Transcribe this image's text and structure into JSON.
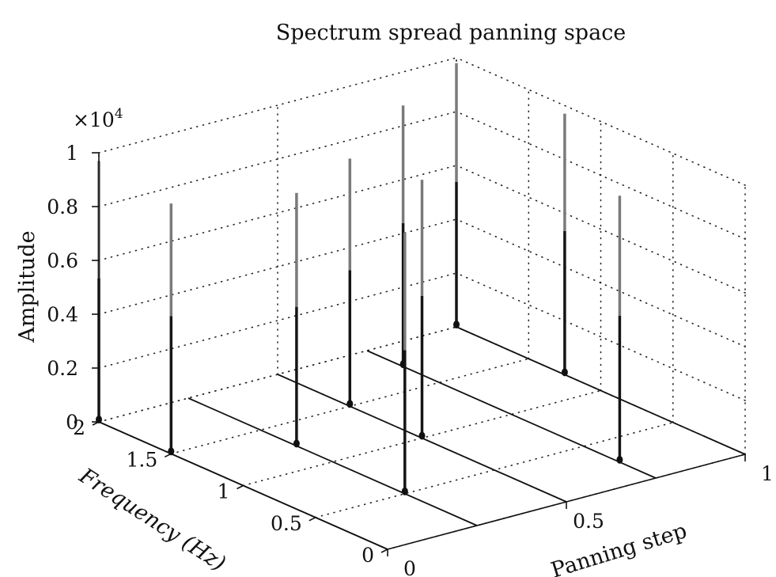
{
  "chart_data": {
    "type": "3d-spectrum",
    "title": "Spectrum spread panning space",
    "zlabel": "Amplitude",
    "xlabel": "Panning step",
    "ylabel": "Frequency (Hz)",
    "z_multiplier": "×10",
    "z_exponent": "4",
    "xlim": [
      0,
      1
    ],
    "ylim": [
      0,
      2
    ],
    "zlim": [
      0,
      1
    ],
    "x_ticks": [
      {
        "v": 0,
        "label": "0"
      },
      {
        "v": 0.5,
        "label": "0.5"
      },
      {
        "v": 1,
        "label": "1"
      }
    ],
    "y_ticks": [
      {
        "v": 0,
        "label": "0"
      },
      {
        "v": 0.5,
        "label": "0.5"
      },
      {
        "v": 1,
        "label": "1"
      },
      {
        "v": 1.5,
        "label": "1.5"
      },
      {
        "v": 2,
        "label": "2"
      }
    ],
    "z_ticks": [
      {
        "v": 0,
        "label": "0"
      },
      {
        "v": 0.2,
        "label": "0.2"
      },
      {
        "v": 0.4,
        "label": "0.4"
      },
      {
        "v": 0.6,
        "label": "0.6"
      },
      {
        "v": 0.8,
        "label": "0.8"
      },
      {
        "v": 1,
        "label": "1"
      }
    ],
    "grid": true,
    "slices": [
      {
        "x": 0.0,
        "peaks": [
          {
            "f": 2.0,
            "a": 0.97
          },
          {
            "f": 1.5,
            "a": 0.93
          }
        ]
      },
      {
        "x": 0.25,
        "peaks": [
          {
            "f": 1.25,
            "a": 0.94
          },
          {
            "f": 0.5,
            "a": 0.97
          }
        ]
      },
      {
        "x": 0.5,
        "peaks": [
          {
            "f": 1.5,
            "a": 0.92
          },
          {
            "f": 1.0,
            "a": 0.96
          }
        ]
      },
      {
        "x": 0.75,
        "peaks": [
          {
            "f": 1.75,
            "a": 0.97
          },
          {
            "f": 0.25,
            "a": 0.99
          }
        ]
      },
      {
        "x": 1.0,
        "peaks": [
          {
            "f": 2.0,
            "a": 0.98
          },
          {
            "f": 1.25,
            "a": 0.97
          }
        ]
      }
    ]
  }
}
